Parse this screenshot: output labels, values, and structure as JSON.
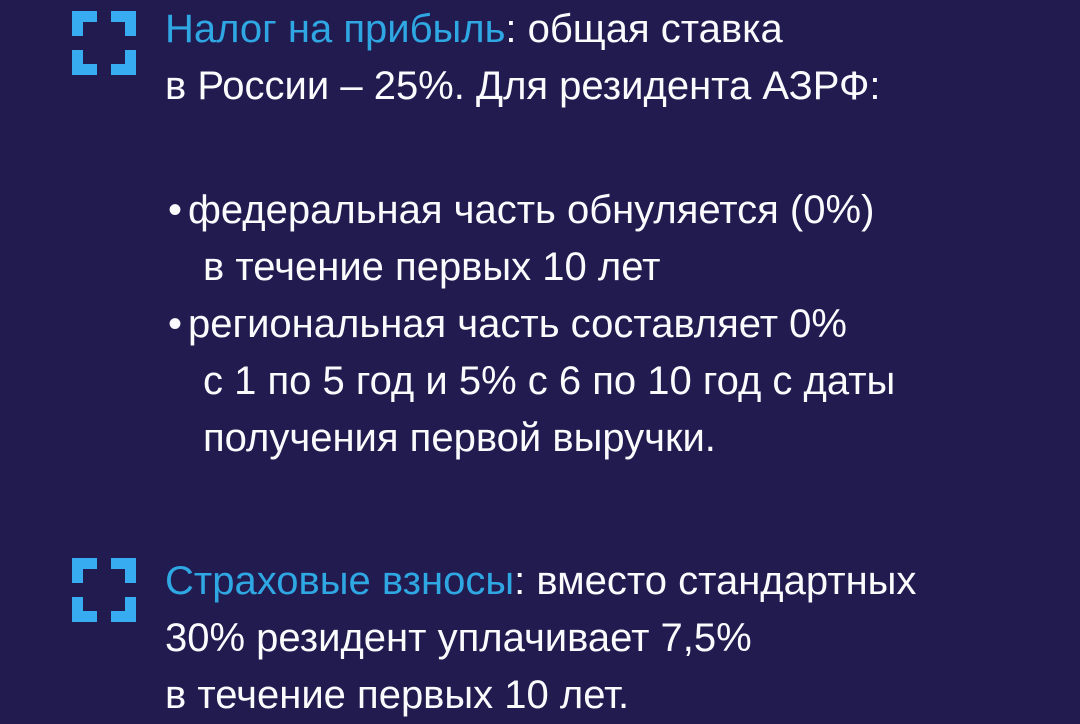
{
  "page": {
    "background_color": "#211B50",
    "accent_color": "#2EA7E3",
    "icon_color": "#38ACF0",
    "text_color": "#FBFAFD"
  },
  "bullet_char": "•",
  "sections": [
    {
      "icon": "frame-corners-icon",
      "heading_highlight": "Налог на прибыль",
      "heading_after_highlight": ": общая ставка",
      "heading_line2": "в России – 25%. Для резидента АЗРФ:",
      "bullets": [
        {
          "lines": [
            "федеральная часть обнуляется (0%)",
            "в течение первых 10 лет"
          ]
        },
        {
          "lines": [
            "региональная часть составляет 0%",
            "с 1 по 5 год и 5% с 6 по 10 год с даты",
            "получения первой выручки."
          ]
        }
      ]
    },
    {
      "icon": "frame-corners-icon",
      "heading_highlight": "Страховые взносы",
      "heading_after_highlight": ": вместо стандартных",
      "lines": [
        "30% резидент уплачивает 7,5%",
        "в течение первых 10 лет."
      ]
    }
  ]
}
